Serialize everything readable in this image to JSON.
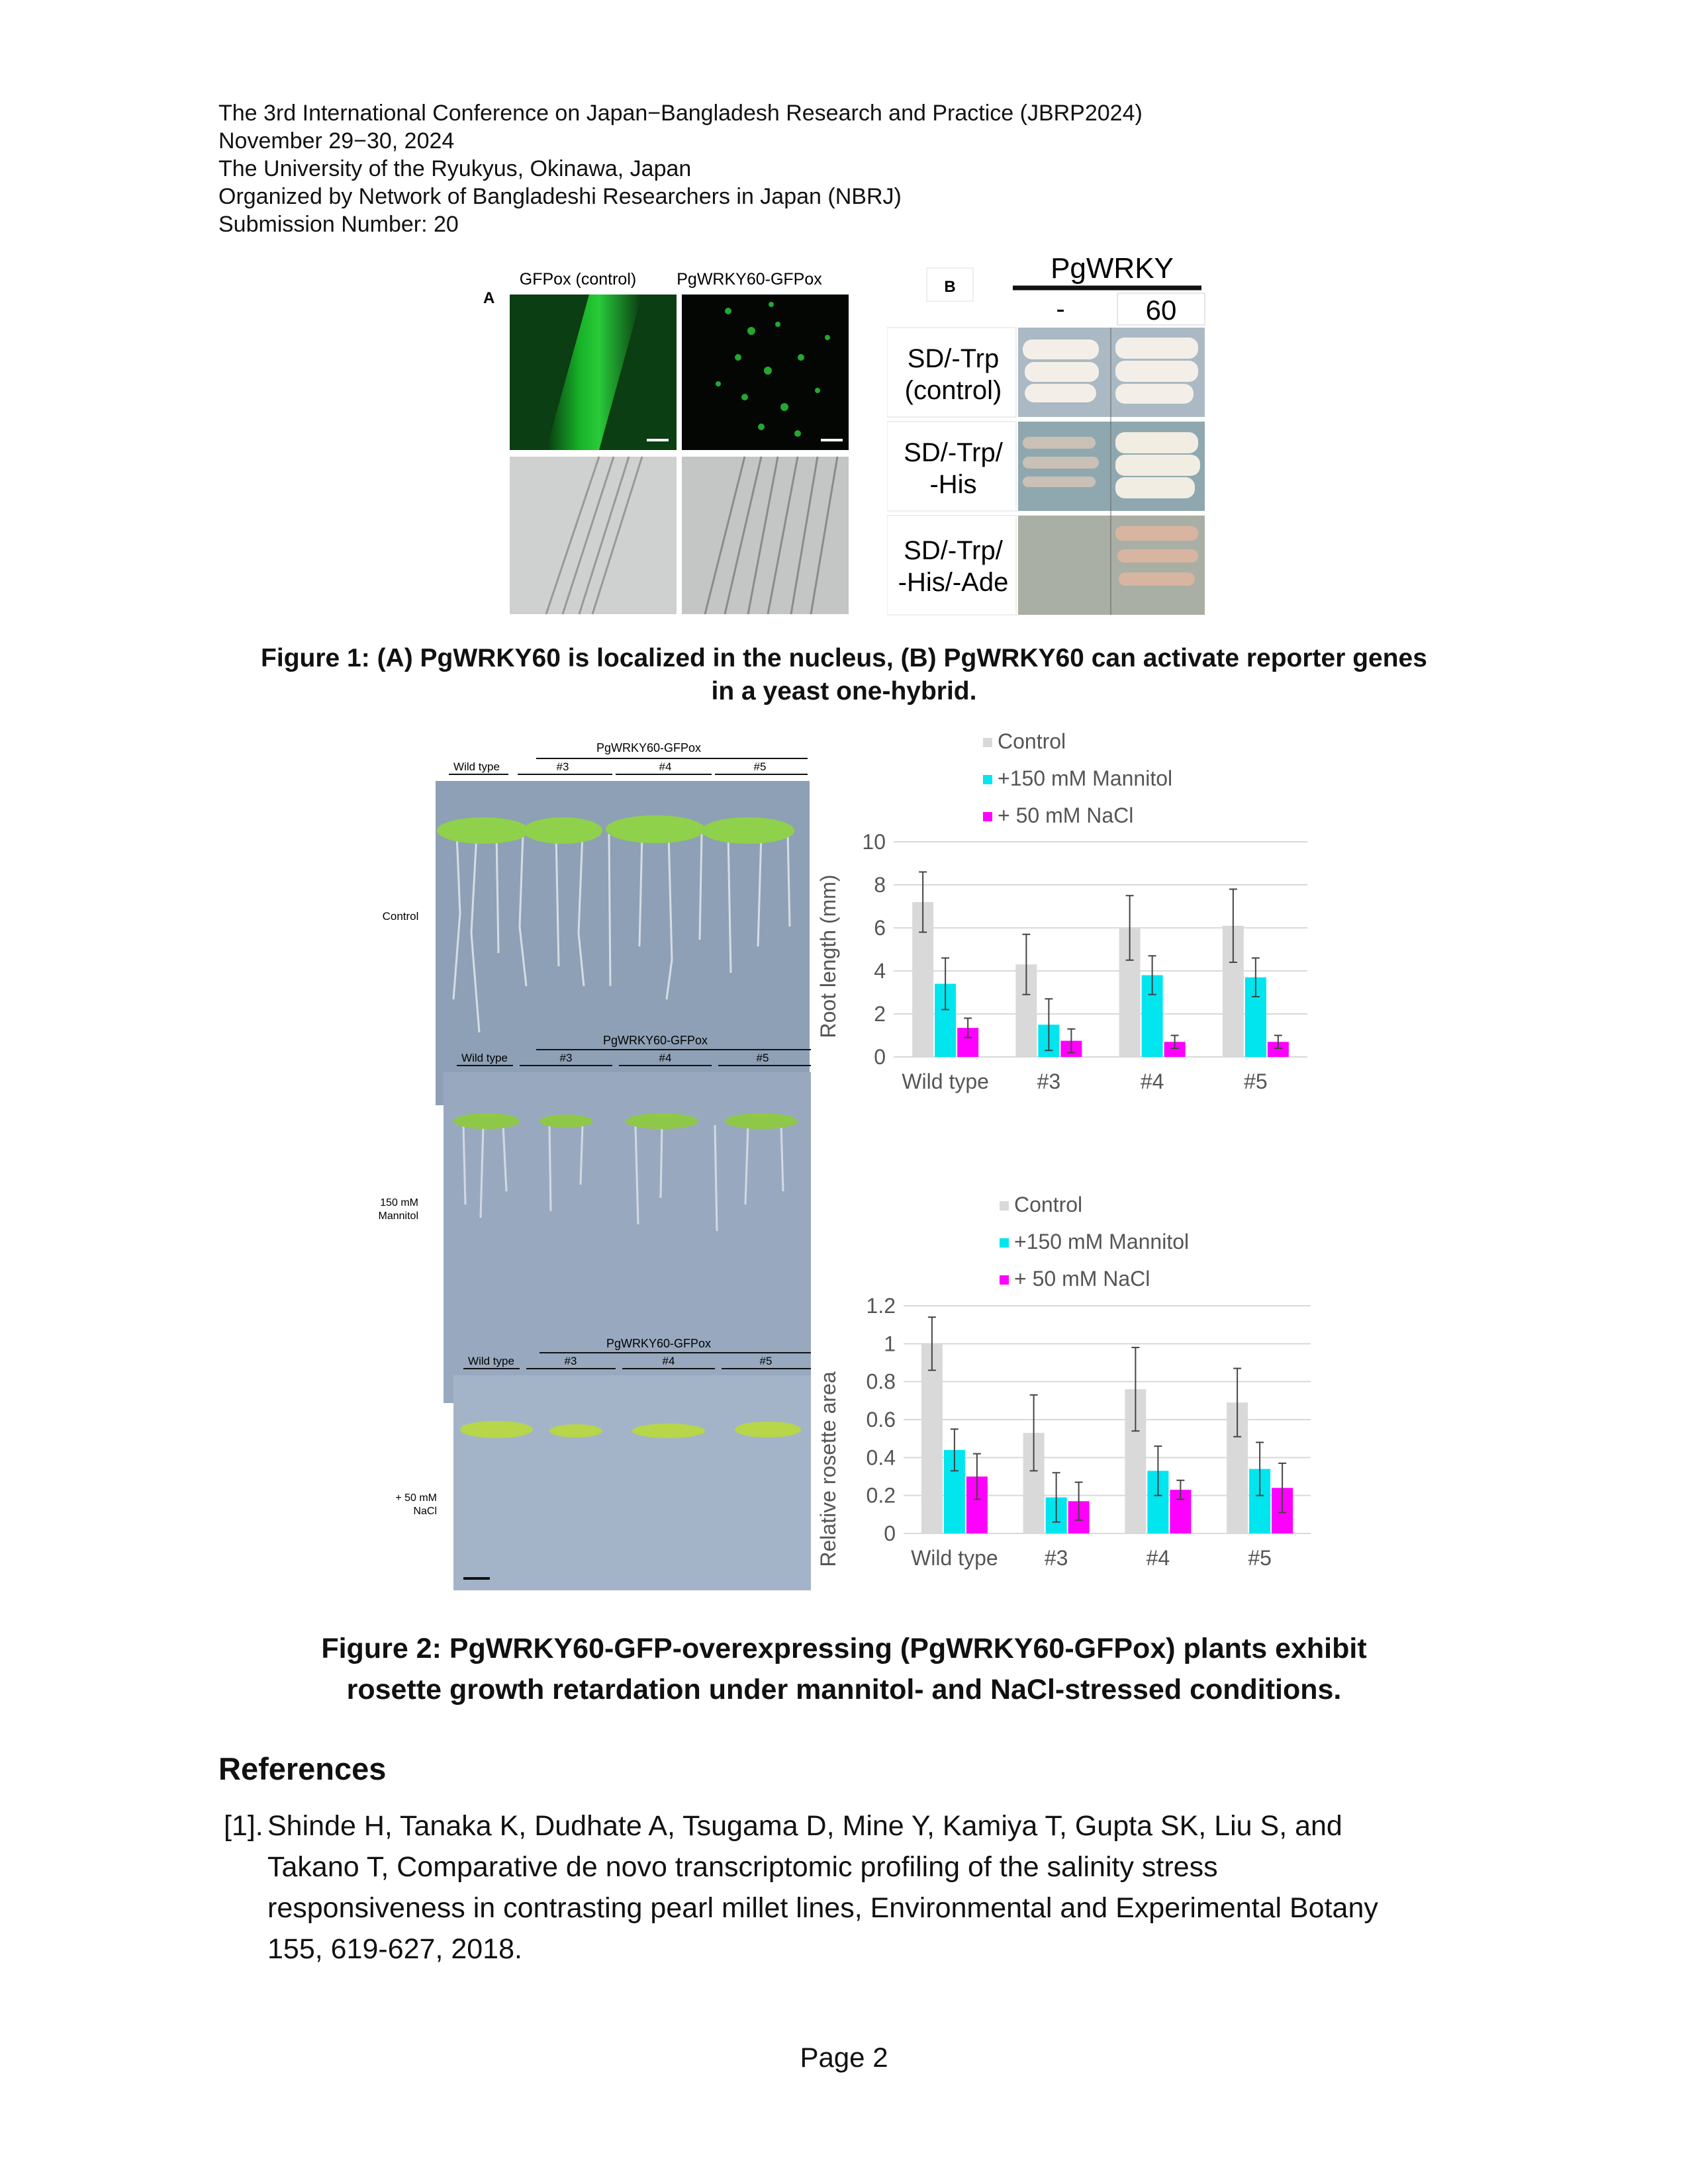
{
  "header": {
    "lines": [
      "The 3rd International Conference on Japan−Bangladesh Research and Practice (JBRP2024)",
      "November 29−30, 2024",
      "The University of the Ryukyus, Okinawa, Japan",
      "Organized by Network of Bangladeshi Researchers in Japan (NBRJ)",
      "Submission Number: 20"
    ]
  },
  "figure1": {
    "panel_a": {
      "letter": "A",
      "col1": "GFPox (control)",
      "col2": "PgWRKY60-GFPox"
    },
    "panel_b": {
      "letter": "B",
      "title": "PgWRKY",
      "col1": "-",
      "col2": "60",
      "rows": [
        {
          "l1": "SD/-Trp",
          "l2": "(control)"
        },
        {
          "l1": "SD/-Trp/",
          "l2": "-His"
        },
        {
          "l1": "SD/-Trp/",
          "l2": "-His/-Ade"
        }
      ]
    },
    "caption_l1": "Figure 1: (A) PgWRKY60 is localized in the nucleus, (B) PgWRKY60 can activate reporter genes",
    "caption_l2": "in a yeast one-hybrid."
  },
  "figure2": {
    "plates": {
      "group_label": "PgWRKY60-GFPox",
      "wild_type": "Wild type",
      "lines": [
        "#3",
        "#4",
        "#5"
      ],
      "conditions": [
        {
          "l1": "Control",
          "l2": ""
        },
        {
          "l1": "150 mM",
          "l2": "Mannitol"
        },
        {
          "l1": "+ 50 mM",
          "l2": "NaCl"
        }
      ]
    },
    "caption_l1": "Figure 2: PgWRKY60-GFP-overexpressing (PgWRKY60-GFPox) plants exhibit",
    "caption_l2": "rosette growth retardation under mannitol- and NaCl-stressed conditions."
  },
  "chart_data": [
    {
      "type": "bar",
      "categories": [
        "Wild type",
        "#3",
        "#4",
        "#5"
      ],
      "series": [
        {
          "name": "Control",
          "color": "#d9d9d9",
          "values": [
            7.2,
            4.3,
            6.0,
            6.1
          ],
          "errors": [
            1.4,
            1.4,
            1.5,
            1.7
          ]
        },
        {
          "name": "+150 mM Mannitol",
          "color": "#00e5ee",
          "values": [
            3.4,
            1.5,
            3.8,
            3.7
          ],
          "errors": [
            1.2,
            1.2,
            0.9,
            0.9
          ]
        },
        {
          "name": "+ 50 mM NaCl",
          "color": "#ff00ff",
          "values": [
            1.35,
            0.75,
            0.7,
            0.7
          ],
          "errors": [
            0.45,
            0.55,
            0.3,
            0.3
          ]
        }
      ],
      "ylabel": "Root length (mm)",
      "ylim": [
        0,
        10
      ],
      "yticks": [
        "0",
        "2",
        "4",
        "6",
        "8",
        "10"
      ],
      "legend": "top"
    },
    {
      "type": "bar",
      "categories": [
        "Wild type",
        "#3",
        "#4",
        "#5"
      ],
      "series": [
        {
          "name": "Control",
          "color": "#d9d9d9",
          "values": [
            1.0,
            0.53,
            0.76,
            0.69
          ],
          "errors": [
            0.14,
            0.2,
            0.22,
            0.18
          ]
        },
        {
          "name": "+150 mM Mannitol",
          "color": "#00e5ee",
          "values": [
            0.44,
            0.19,
            0.33,
            0.34
          ],
          "errors": [
            0.11,
            0.13,
            0.13,
            0.14
          ]
        },
        {
          "name": "+ 50 mM NaCl",
          "color": "#ff00ff",
          "values": [
            0.3,
            0.17,
            0.23,
            0.24
          ],
          "errors": [
            0.12,
            0.1,
            0.05,
            0.13
          ]
        }
      ],
      "ylabel": "Relative rosette area",
      "ylim": [
        0,
        1.2
      ],
      "yticks": [
        "0",
        "0.2",
        "0.4",
        "0.6",
        "0.8",
        "1",
        "1.2"
      ],
      "legend": "top"
    }
  ],
  "references": {
    "heading": "References",
    "items": [
      {
        "num": "[1].",
        "l1": "Shinde H, Tanaka K, Dudhate A, Tsugama D, Mine Y, Kamiya T, Gupta SK, Liu S, and",
        "l2": "Takano T, Comparative de novo transcriptomic profiling of the salinity stress",
        "l3": "responsiveness in contrasting pearl millet lines, Environmental and Experimental Botany",
        "l4": "155, 619-627, 2018."
      }
    ]
  },
  "footer": {
    "page": "Page 2"
  }
}
